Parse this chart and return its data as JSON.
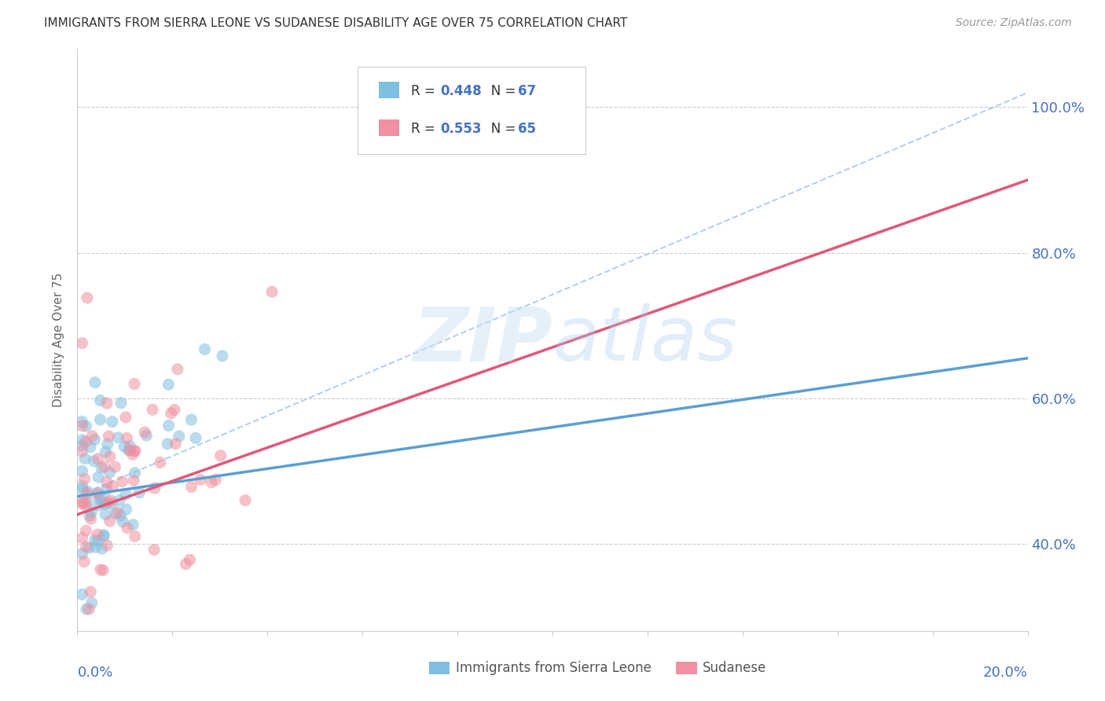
{
  "title": "IMMIGRANTS FROM SIERRA LEONE VS SUDANESE DISABILITY AGE OVER 75 CORRELATION CHART",
  "source": "Source: ZipAtlas.com",
  "ylabel": "Disability Age Over 75",
  "legend_label1": "Immigrants from Sierra Leone",
  "legend_label2": "Sudanese",
  "R1": 0.448,
  "N1": 67,
  "R2": 0.553,
  "N2": 65,
  "color_blue": "#7fbfdf",
  "color_pink": "#f090a0",
  "color_blue_line": "#5a9fd4",
  "color_pink_line": "#e05878",
  "color_blue_text": "#4472C4",
  "color_ref_line": "#aaccee",
  "watermark_color": "#d4e8f5",
  "xlim": [
    0.0,
    0.2
  ],
  "ylim": [
    0.28,
    1.08
  ],
  "yticks": [
    0.4,
    0.6,
    0.8,
    1.0
  ],
  "ytick_labels": [
    "40.0%",
    "60.0%",
    "80.0%",
    "100.0%"
  ],
  "blue_line_y0": 0.465,
  "blue_line_y1": 0.655,
  "pink_line_y0": 0.44,
  "pink_line_y1": 0.9,
  "ref_line_y0": 0.465,
  "ref_line_y1": 1.02
}
